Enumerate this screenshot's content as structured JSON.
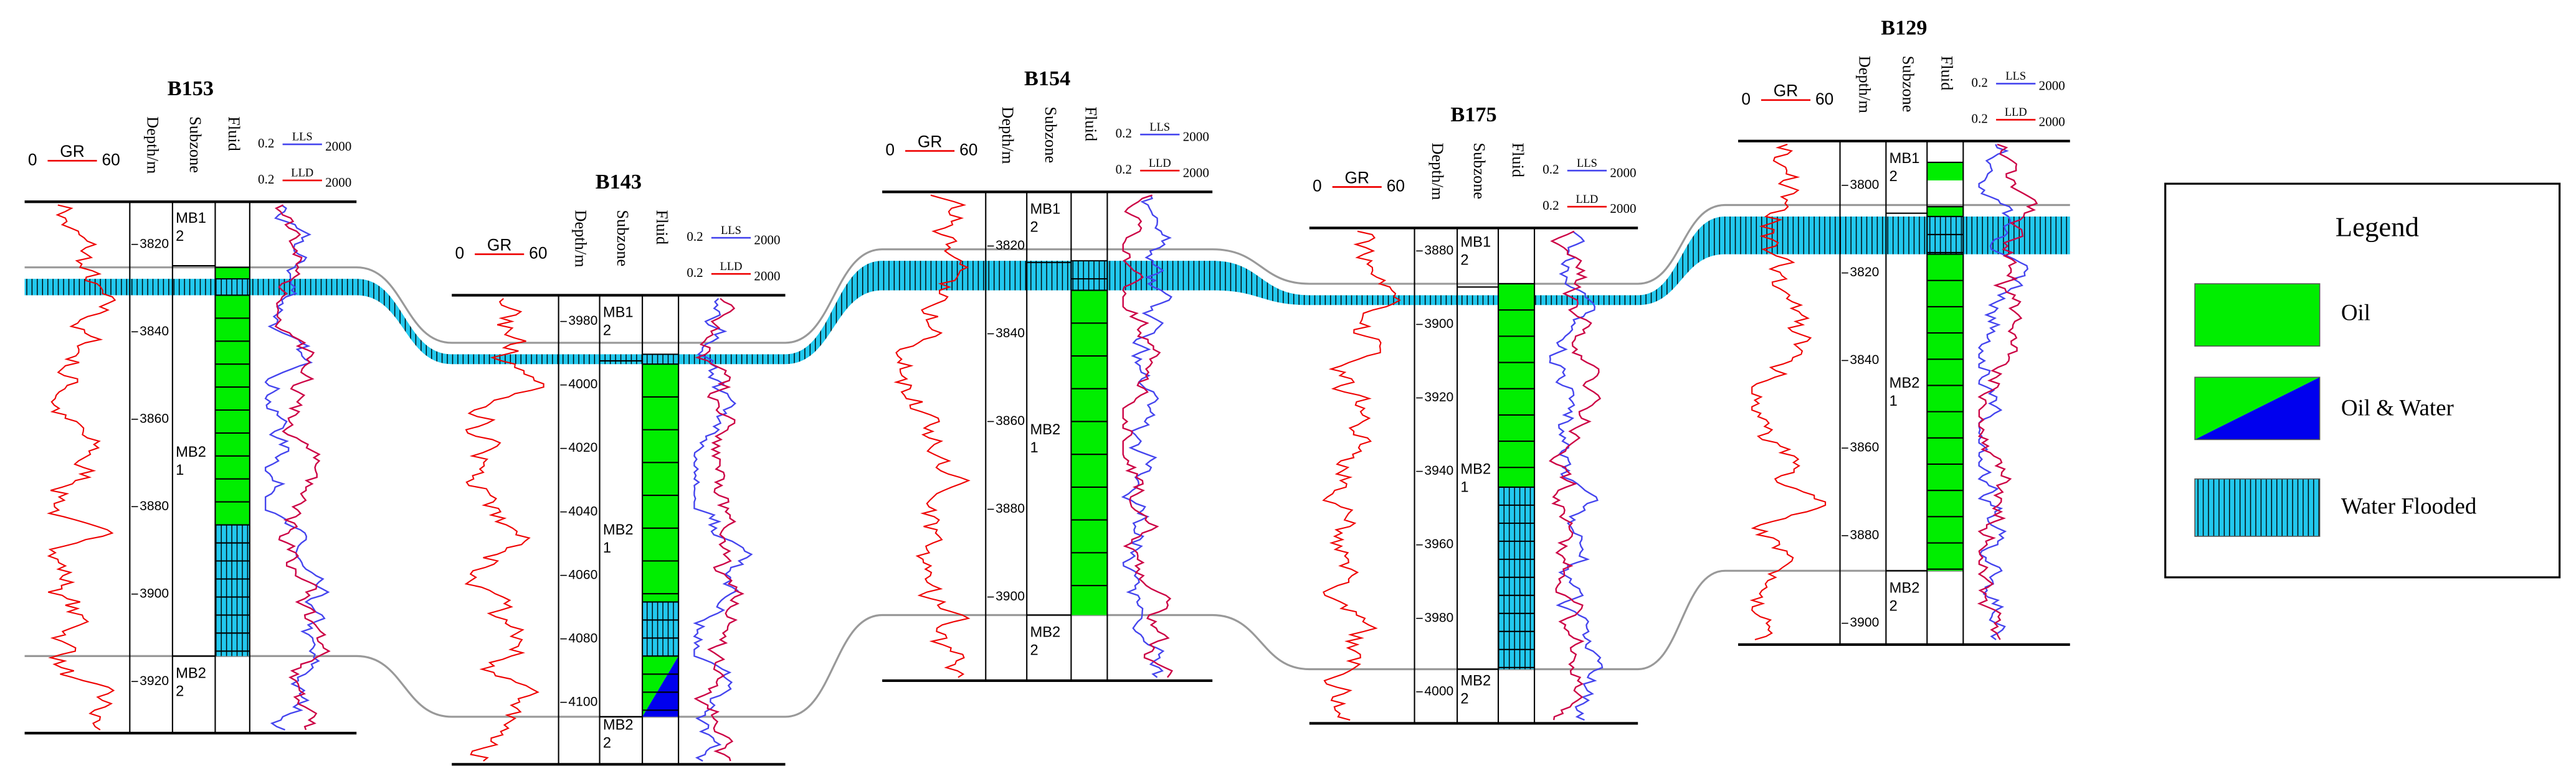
{
  "wells": [
    {
      "name": "B153",
      "header": {
        "gr": "GR",
        "gr_min": "0",
        "gr_max": "60",
        "depth": "Depth/m",
        "subzone": "Subzone",
        "fluid": "Fluid",
        "lls": "LLS",
        "lld": "LLD",
        "res_min": "0.2",
        "res_max": "2000"
      },
      "depth_ticks": [
        3820,
        3840,
        3860,
        3880,
        3900,
        3920
      ],
      "subzones": [
        {
          "name": "MB1",
          "layer": "2"
        },
        {
          "name": "MB2",
          "layer": "1"
        },
        {
          "name": "MB2",
          "layer": "2"
        }
      ]
    },
    {
      "name": "B143",
      "header": {
        "gr": "GR",
        "gr_min": "0",
        "gr_max": "60",
        "depth": "Depth/m",
        "subzone": "Subzone",
        "fluid": "Fluid",
        "lls": "LLS",
        "lld": "LLD",
        "res_min": "0.2",
        "res_max": "2000"
      },
      "depth_ticks": [
        3980,
        4000,
        4020,
        4040,
        4060,
        4080,
        4100
      ],
      "subzones": [
        {
          "name": "MB1",
          "layer": "2"
        },
        {
          "name": "MB2",
          "layer": "1"
        },
        {
          "name": "MB2",
          "layer": "2"
        }
      ]
    },
    {
      "name": "B154",
      "header": {
        "gr": "GR",
        "gr_min": "0",
        "gr_max": "60",
        "depth": "Depth/m",
        "subzone": "Subzone",
        "fluid": "Fluid",
        "lls": "LLS",
        "lld": "LLD",
        "res_min": "0.2",
        "res_max": "2000"
      },
      "depth_ticks": [
        3820,
        3840,
        3860,
        3880,
        3900
      ],
      "subzones": [
        {
          "name": "MB1",
          "layer": "2"
        },
        {
          "name": "MB2",
          "layer": "1"
        },
        {
          "name": "MB2",
          "layer": "2"
        }
      ]
    },
    {
      "name": "B175",
      "header": {
        "gr": "GR",
        "gr_min": "0",
        "gr_max": "60",
        "depth": "Depth/m",
        "subzone": "Subzone",
        "fluid": "Fluid",
        "lls": "LLS",
        "lld": "LLD",
        "res_min": "0.2",
        "res_max": "2000"
      },
      "depth_ticks": [
        3880,
        3900,
        3920,
        3940,
        3960,
        3980,
        4000
      ],
      "subzones": [
        {
          "name": "MB1",
          "layer": "2"
        },
        {
          "name": "MB2",
          "layer": "1"
        },
        {
          "name": "MB2",
          "layer": "2"
        }
      ]
    },
    {
      "name": "B129",
      "header": {
        "gr": "GR",
        "gr_min": "0",
        "gr_max": "60",
        "depth": "Depth/m",
        "subzone": "Subzone",
        "fluid": "Fluid",
        "lls": "LLS",
        "lld": "LLD",
        "res_min": "0.2",
        "res_max": "2000"
      },
      "depth_ticks": [
        3800,
        3820,
        3840,
        3860,
        3880,
        3900
      ],
      "subzones": [
        {
          "name": "MB1",
          "layer": "2"
        },
        {
          "name": "MB2",
          "layer": "1"
        },
        {
          "name": "MB2",
          "layer": "2"
        }
      ]
    }
  ],
  "legend": {
    "title": "Legend",
    "items": [
      "Oil",
      "Oil & Water",
      "Water Flooded"
    ]
  }
}
